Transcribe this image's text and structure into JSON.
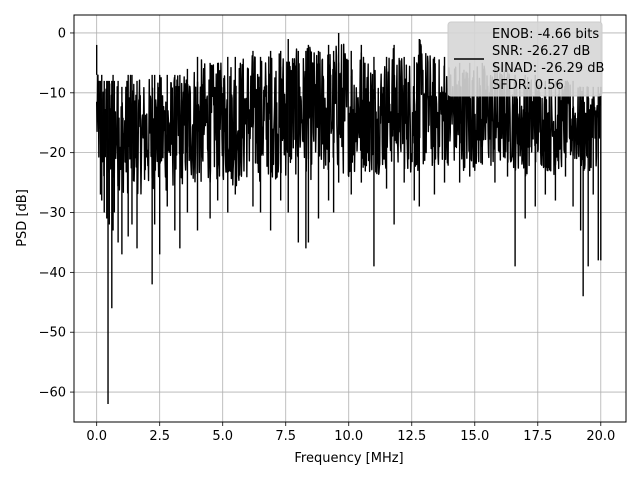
{
  "chart_data": {
    "type": "line",
    "xlabel": "Frequency [MHz]",
    "ylabel": "PSD [dB]",
    "xlim": [
      -0.9,
      21.0
    ],
    "ylim": [
      -65,
      3
    ],
    "xticks": [
      0.0,
      2.5,
      5.0,
      7.5,
      10.0,
      12.5,
      15.0,
      17.5,
      20.0
    ],
    "xtick_labels": [
      "0.0",
      "2.5",
      "5.0",
      "7.5",
      "10.0",
      "12.5",
      "15.0",
      "17.5",
      "20.0"
    ],
    "yticks": [
      0,
      -10,
      -20,
      -30,
      -40,
      -50,
      -60
    ],
    "ytick_labels": [
      "0",
      "−10",
      "−20",
      "−30",
      "−40",
      "−50",
      "−60"
    ],
    "grid": true,
    "legend": {
      "position": "top-right",
      "entries": [
        "ENOB: -4.66 bits",
        "SNR: -26.27 dB",
        "SINAD: -26.29 dB",
        "SFDR: 0.56"
      ]
    },
    "series": [
      {
        "color": "#000000",
        "x": [
          0.0,
          0.05,
          0.1,
          0.15,
          0.2,
          0.3,
          0.4,
          0.45,
          0.5,
          0.6,
          0.65,
          0.7,
          0.85,
          1.0,
          1.2,
          1.25,
          1.4,
          1.6,
          2.2,
          2.3,
          2.5,
          2.8,
          3.1,
          3.3,
          3.6,
          4.0,
          4.5,
          4.8,
          5.2,
          5.5,
          6.2,
          6.5,
          6.9,
          7.3,
          7.6,
          8.0,
          8.3,
          8.4,
          8.8,
          9.2,
          9.4,
          9.6,
          10.1,
          10.5,
          11.0,
          11.5,
          11.8,
          12.2,
          12.6,
          12.8,
          13.4,
          13.8,
          14.4,
          14.8,
          15.3,
          15.8,
          16.3,
          16.6,
          17.0,
          17.4,
          17.8,
          18.2,
          18.6,
          18.9,
          19.2,
          19.3,
          19.5,
          19.7,
          19.9,
          20.0
        ],
        "y": [
          -2,
          -14,
          -16,
          -27,
          -28,
          -30,
          -31,
          -62,
          -32,
          -46,
          -33,
          -30,
          -35,
          -37,
          -21,
          -34,
          -32,
          -36,
          -42,
          -32,
          -37,
          -29,
          -33,
          -36,
          -30,
          -33,
          -31,
          -28,
          -30,
          -27,
          -29,
          -30,
          -33,
          -28,
          -30,
          -35,
          -36,
          -35,
          -31,
          -28,
          -30,
          -25,
          -27,
          -25,
          -39,
          -26,
          -32,
          -25,
          -28,
          -29,
          -27,
          -25,
          -25,
          -24,
          -22,
          -25,
          -24,
          -39,
          -31,
          -29,
          -27,
          -28,
          -24,
          -29,
          -33,
          -44,
          -39,
          -27,
          -38,
          -38
        ],
        "upper": [
          -7,
          -7,
          -8,
          -8,
          -7,
          -8,
          -8,
          -8,
          -8,
          -8,
          -7,
          -8,
          -8,
          -9,
          -8,
          -7,
          -7,
          -8,
          -7,
          -7,
          -7,
          -7,
          -7,
          -7,
          -6,
          -4,
          -5,
          -5,
          -4,
          -4,
          -3,
          -4,
          -3,
          -3,
          -1,
          -3,
          -3,
          -2,
          -3,
          -2,
          -3,
          0,
          -3,
          -2,
          -4,
          -4,
          -2,
          -4,
          -4,
          -1,
          -4,
          -4,
          -5,
          -5,
          -5,
          -5,
          -6,
          -7,
          -7,
          -7,
          -8,
          -8,
          -8,
          -8,
          -9,
          -9,
          -9,
          -9,
          -9,
          -9
        ],
        "lower": [
          -20,
          -22,
          -24,
          -24,
          -25,
          -26,
          -25,
          -26,
          -27,
          -27,
          -27,
          -25,
          -26,
          -27,
          -27,
          -27,
          -26,
          -27,
          -27,
          -25,
          -26,
          -27,
          -26,
          -26,
          -25,
          -26,
          -25,
          -25,
          -25,
          -26,
          -24,
          -25,
          -24,
          -25,
          -24,
          -24,
          -23,
          -25,
          -24,
          -24,
          -23,
          -24,
          -24,
          -23,
          -24,
          -23,
          -22,
          -23,
          -24,
          -23,
          -23,
          -22,
          -23,
          -23,
          -23,
          -23,
          -22,
          -23,
          -24,
          -22,
          -23,
          -24,
          -22,
          -22,
          -23,
          -24,
          -23,
          -23,
          -22,
          -22
        ]
      }
    ]
  }
}
